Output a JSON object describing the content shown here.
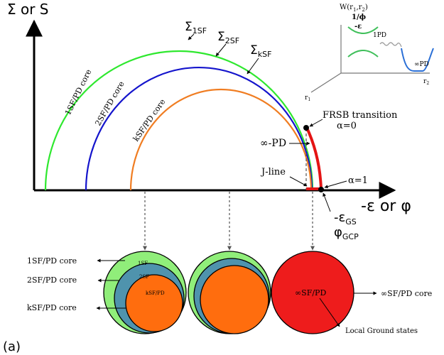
{
  "panel_label": "(a)",
  "y_axis_label": "Σ or S",
  "x_axis_label": "-ε or φ",
  "curves": {
    "c1": {
      "sigma": "Σ",
      "sub": "1SF",
      "label": "1SF/PD core",
      "color": "#2ee82e"
    },
    "c2": {
      "sigma": "Σ",
      "sub": "2SF",
      "label": "2SF/PD core",
      "color": "#1414cc"
    },
    "c3": {
      "sigma": "Σ",
      "sub": "kSF",
      "label": "kSF/PD core",
      "color": "#f07d22"
    },
    "inf": {
      "color": "#e41414"
    }
  },
  "annotations": {
    "frsb_line1": "FRSB transition",
    "frsb_line2": "α=0",
    "inf_pd": "∞-PD",
    "jline": "J-line",
    "alpha1": "α=1",
    "eps_gs": "-ε",
    "eps_gs_sub": "GS",
    "phi_gcp": "φ",
    "phi_gcp_sub": "GCP"
  },
  "inset": {
    "ylabel_1": "W(r",
    "ylabel_sub1": "1",
    "ylabel_mid": ",r",
    "ylabel_sub2": "2",
    "ylabel_end": ")",
    "ylabel_2": "1/ϕ",
    "ylabel_3": "-ε",
    "label_1pd": "1PD",
    "label_infpd": "∞PD",
    "axis_r1": "r",
    "axis_r1_sub": "1",
    "axis_r2": "r",
    "axis_r2_sub": "2"
  },
  "bottom": {
    "left_labels": [
      "1SF/PD core",
      "2SF/PD core",
      "kSF/PD core"
    ],
    "inner_labels": [
      "1SF",
      "2SF",
      "kSF/PD"
    ],
    "red_label": "∞SF/PD",
    "right_label": "∞SF/PD core",
    "ground_label": "Local Ground states"
  },
  "colors": {
    "light_green": "#90ee7a",
    "teal": "#4f93ad",
    "orange": "#ff6d0e",
    "red": "#ee1c1c",
    "inset_green": "#3fbf5a",
    "inset_blue": "#2a6fd6"
  }
}
